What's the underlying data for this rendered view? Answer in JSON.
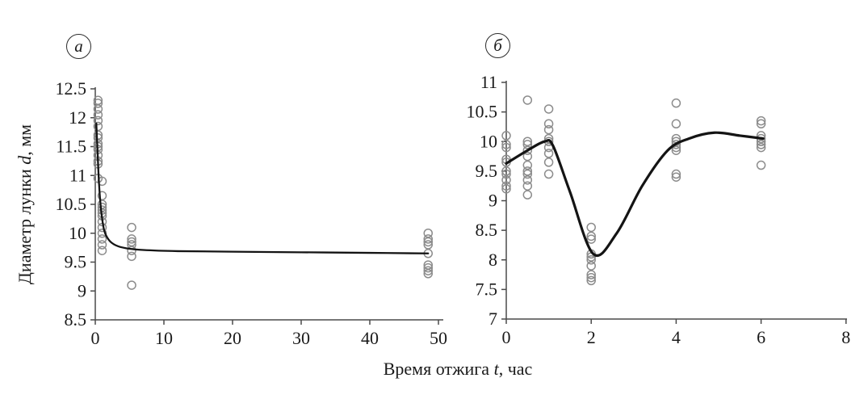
{
  "figure": {
    "xlabel": {
      "prefix": "Время отжига ",
      "var": "t",
      "suffix": ", час"
    },
    "ylabel": {
      "prefix": "Диаметр лунки ",
      "var": "d",
      "suffix": ", мм"
    },
    "colors": {
      "background": "#ffffff",
      "axis": "#4a4a4a",
      "tick_text": "#1a1a1a",
      "marker": "#8c8c8c",
      "curve": "#141414"
    }
  },
  "chart_data": [
    {
      "id": "a",
      "type": "scatter",
      "panel_label": "а",
      "xlabel": "Время отжига t, час",
      "ylabel": "Диаметр лунки d, мм",
      "xlim": [
        0,
        50
      ],
      "ylim": [
        8.5,
        12.5
      ],
      "xticks": [
        0,
        10,
        20,
        30,
        40,
        50
      ],
      "yticks": [
        8.5,
        9,
        9.5,
        10,
        10.5,
        11,
        11.5,
        12,
        12.5
      ],
      "grid": false,
      "clusters": [
        {
          "x": 0.4,
          "y_values": [
            12.3,
            12.25,
            12.15,
            12.05,
            11.95,
            11.85,
            11.7,
            11.65,
            11.55,
            11.5,
            11.45,
            11.35,
            11.25,
            11.2,
            10.95
          ]
        },
        {
          "x": 1.0,
          "y_values": [
            10.9,
            10.65,
            10.5,
            10.45,
            10.4,
            10.35,
            10.3,
            10.2,
            10.1,
            10.0,
            9.9,
            9.8,
            9.7
          ]
        },
        {
          "x": 5.3,
          "y_values": [
            10.1,
            9.9,
            9.85,
            9.8,
            9.7,
            9.6,
            9.1
          ]
        },
        {
          "x": 48.5,
          "y_values": [
            10.0,
            9.9,
            9.85,
            9.8,
            9.65,
            9.45,
            9.4,
            9.35,
            9.3
          ]
        }
      ],
      "fit_curve": [
        [
          0.15,
          11.9
        ],
        [
          0.3,
          11.5
        ],
        [
          0.55,
          10.85
        ],
        [
          0.85,
          10.4
        ],
        [
          1.3,
          10.05
        ],
        [
          2.0,
          9.88
        ],
        [
          3.0,
          9.79
        ],
        [
          4.5,
          9.74
        ],
        [
          7,
          9.71
        ],
        [
          12,
          9.69
        ],
        [
          20,
          9.68
        ],
        [
          30,
          9.67
        ],
        [
          40,
          9.66
        ],
        [
          48.5,
          9.65
        ]
      ]
    },
    {
      "id": "b",
      "type": "scatter",
      "panel_label": "б",
      "xlabel": "Время отжига t, час",
      "ylabel": "Диаметр лунки d, мм",
      "xlim": [
        0,
        8
      ],
      "ylim": [
        7,
        11
      ],
      "xticks": [
        0,
        2,
        4,
        6,
        8
      ],
      "yticks": [
        7,
        7.5,
        8,
        8.5,
        9,
        9.5,
        10,
        10.5,
        11
      ],
      "grid": false,
      "clusters": [
        {
          "x": 0,
          "y_values": [
            10.1,
            9.95,
            9.9,
            9.7,
            9.65,
            9.5,
            9.45,
            9.35,
            9.25,
            9.2
          ]
        },
        {
          "x": 0.5,
          "y_values": [
            10.7,
            10.0,
            9.95,
            9.85,
            9.75,
            9.6,
            9.5,
            9.45,
            9.35,
            9.25,
            9.1
          ]
        },
        {
          "x": 1.0,
          "y_values": [
            10.55,
            10.3,
            10.2,
            10.05,
            10.0,
            9.9,
            9.8,
            9.65,
            9.45
          ]
        },
        {
          "x": 2.0,
          "y_values": [
            8.55,
            8.4,
            8.35,
            8.1,
            8.05,
            8.0,
            7.9,
            7.75,
            7.7,
            7.65
          ]
        },
        {
          "x": 4.0,
          "y_values": [
            10.65,
            10.3,
            10.05,
            10.0,
            9.95,
            9.9,
            9.85,
            9.45,
            9.4
          ]
        },
        {
          "x": 6.0,
          "y_values": [
            10.35,
            10.3,
            10.1,
            10.05,
            10.0,
            9.95,
            9.9,
            9.6
          ]
        }
      ],
      "fit_curve": [
        [
          0,
          9.63
        ],
        [
          0.5,
          9.85
        ],
        [
          0.9,
          10.0
        ],
        [
          1.1,
          9.93
        ],
        [
          1.5,
          9.15
        ],
        [
          2.05,
          8.1
        ],
        [
          2.6,
          8.45
        ],
        [
          3.2,
          9.25
        ],
        [
          3.8,
          9.85
        ],
        [
          4.3,
          10.05
        ],
        [
          4.9,
          10.15
        ],
        [
          5.5,
          10.1
        ],
        [
          6.05,
          10.05
        ]
      ]
    }
  ]
}
